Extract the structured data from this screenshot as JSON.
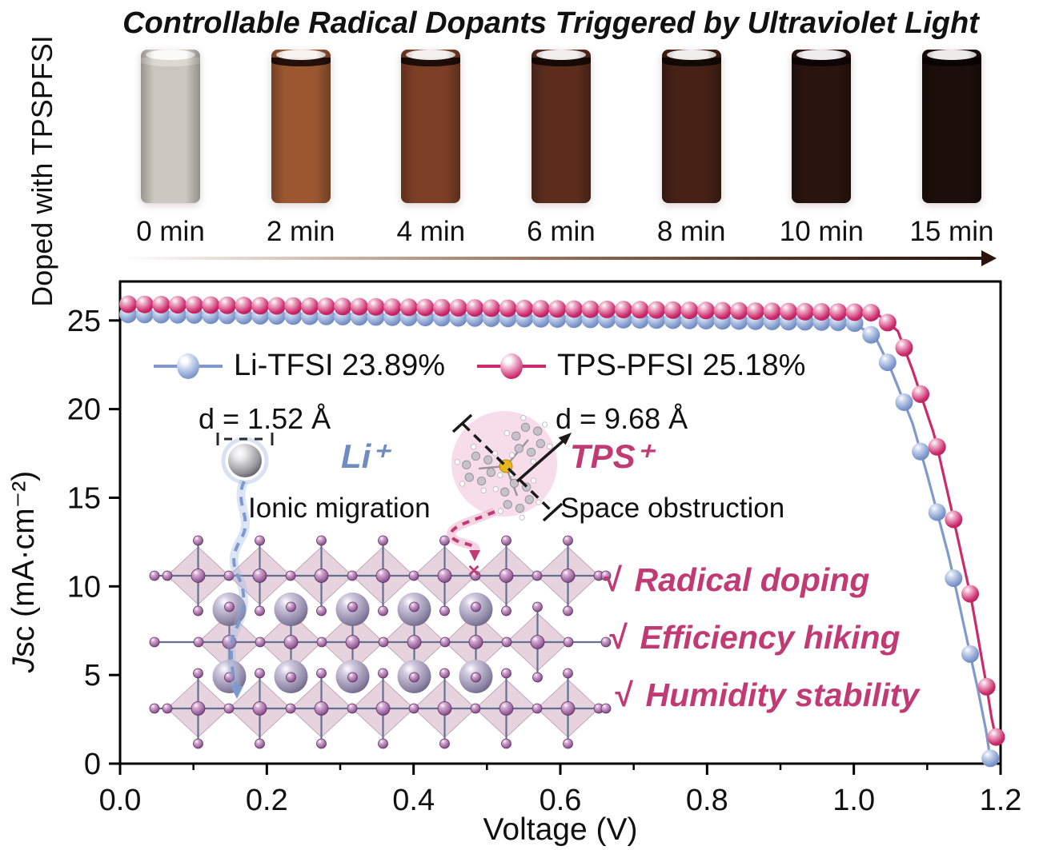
{
  "title": "Controllable Radical Dopants Triggered by Ultraviolet Light",
  "side_label": "Doped with TPSPFSI",
  "vials": [
    {
      "label": "0 min",
      "liquid": "#cbc7be",
      "cap": "#dcd9d0"
    },
    {
      "label": "2 min",
      "liquid": "#9a5730",
      "cap": "#23100a"
    },
    {
      "label": "4 min",
      "liquid": "#7c3f26",
      "cap": "#1d0d08"
    },
    {
      "label": "6 min",
      "liquid": "#5c2d1d",
      "cap": "#170a06"
    },
    {
      "label": "8 min",
      "liquid": "#452116",
      "cap": "#120804"
    },
    {
      "label": "10 min",
      "liquid": "#2a140f",
      "cap": "#0d0503"
    },
    {
      "label": "15 min",
      "liquid": "#1c0e0b",
      "cap": "#0a0403"
    }
  ],
  "chart_data": {
    "type": "line",
    "xlabel": "Voltage (V)",
    "ylabel": "Jsc (mA·cm⁻²)",
    "ylabel_parts": {
      "italic": "J",
      "rest": "sc (mA·cm⁻²)"
    },
    "xlim": [
      0.0,
      1.2
    ],
    "ylim": [
      0,
      27.2
    ],
    "xticks": [
      "0.0",
      "0.2",
      "0.4",
      "0.6",
      "0.8",
      "1.0",
      "1.2"
    ],
    "yticks": [
      "0",
      "5",
      "10",
      "15",
      "20",
      "25"
    ],
    "grid": false,
    "legend_position": "inside-top-left",
    "series": [
      {
        "name": "Li-TFSI 23.89%",
        "color": "#7f99cc",
        "color_light": "#cdd9ef",
        "color_dark": "#5f7cb4",
        "points": [
          [
            0.0,
            25.35
          ],
          [
            0.1,
            25.31
          ],
          [
            0.2,
            25.26
          ],
          [
            0.3,
            25.22
          ],
          [
            0.4,
            25.17
          ],
          [
            0.5,
            25.13
          ],
          [
            0.6,
            25.08
          ],
          [
            0.7,
            25.04
          ],
          [
            0.8,
            24.99
          ],
          [
            0.9,
            24.94
          ],
          [
            0.95,
            24.92
          ],
          [
            1.0,
            24.88
          ],
          [
            1.03,
            24.0
          ],
          [
            1.05,
            22.3
          ],
          [
            1.08,
            19.2
          ],
          [
            1.1,
            16.3
          ],
          [
            1.13,
            11.6
          ],
          [
            1.15,
            7.8
          ],
          [
            1.17,
            4.0
          ],
          [
            1.18,
            1.9
          ],
          [
            1.186,
            0.3
          ]
        ]
      },
      {
        "name": "TPS-PFSI  25.18%",
        "color": "#cc2a6b",
        "color_light": "#f0b3cd",
        "color_dark": "#a81b53",
        "points": [
          [
            0.0,
            25.92
          ],
          [
            0.1,
            25.88
          ],
          [
            0.2,
            25.83
          ],
          [
            0.3,
            25.79
          ],
          [
            0.4,
            25.74
          ],
          [
            0.5,
            25.7
          ],
          [
            0.6,
            25.65
          ],
          [
            0.7,
            25.61
          ],
          [
            0.8,
            25.56
          ],
          [
            0.9,
            25.51
          ],
          [
            1.0,
            25.47
          ],
          [
            1.03,
            25.43
          ],
          [
            1.06,
            24.4
          ],
          [
            1.08,
            22.2
          ],
          [
            1.11,
            18.5
          ],
          [
            1.13,
            14.9
          ],
          [
            1.16,
            9.3
          ],
          [
            1.18,
            4.6
          ],
          [
            1.19,
            2.0
          ],
          [
            1.194,
            1.5
          ]
        ]
      }
    ]
  },
  "annotations": {
    "li": {
      "distance": "d = 1.52 Å",
      "ion": "Li⁺",
      "mechanism": "Ionic migration",
      "color": "#6f8cc0"
    },
    "tps": {
      "distance": "d = 9.68 Å",
      "ion": "TPS⁺",
      "mechanism": "Space obstruction",
      "color": "#c13a74"
    }
  },
  "checklist": {
    "color": "#c13a74",
    "items": [
      {
        "mark": "√",
        "label": "Radical doping"
      },
      {
        "mark": "√",
        "label": "Efficiency hiking"
      },
      {
        "mark": "√",
        "label": "Humidity stability"
      }
    ]
  }
}
